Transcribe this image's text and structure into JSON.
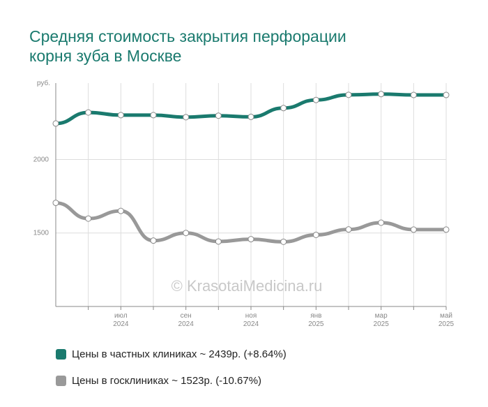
{
  "title_line1": "Средняя стоимость закрытия перфорации",
  "title_line2": "корня зуба в Москве",
  "watermark": "© KrasotaiMedicina.ru",
  "chart_data": {
    "type": "line",
    "y_unit": "руб.",
    "ylim": [
      1000,
      2520
    ],
    "yticks": [
      2000,
      1500
    ],
    "x": [
      "2024-05",
      "2024-06",
      "2024-07",
      "2024-08",
      "2024-09",
      "2024-10",
      "2024-11",
      "2024-12",
      "2025-01",
      "2025-02",
      "2025-03",
      "2025-04",
      "2025-05"
    ],
    "xtick_labels": [
      {
        "x": "2024-07",
        "line1": "июл",
        "line2": "2024"
      },
      {
        "x": "2024-09",
        "line1": "сен",
        "line2": "2024"
      },
      {
        "x": "2024-11",
        "line1": "ноя",
        "line2": "2024"
      },
      {
        "x": "2025-01",
        "line1": "янв",
        "line2": "2025"
      },
      {
        "x": "2025-03",
        "line1": "мар",
        "line2": "2025"
      },
      {
        "x": "2025-05",
        "line1": "май",
        "line2": "2025"
      }
    ],
    "grid": true,
    "legend_position": "bottom",
    "series": [
      {
        "name": "Цены в частных клиниках ~ 2439р. (+8.64%)",
        "color": "#1a7a6e",
        "values": [
          2245,
          2320,
          2302,
          2302,
          2288,
          2298,
          2290,
          2350,
          2405,
          2440,
          2445,
          2439,
          2439
        ]
      },
      {
        "name": "Цены в госклиниках ~ 1523р. (-10.67%)",
        "color": "#999999",
        "values": [
          1705,
          1598,
          1650,
          1448,
          1500,
          1442,
          1458,
          1440,
          1487,
          1524,
          1570,
          1523,
          1523
        ]
      }
    ]
  }
}
